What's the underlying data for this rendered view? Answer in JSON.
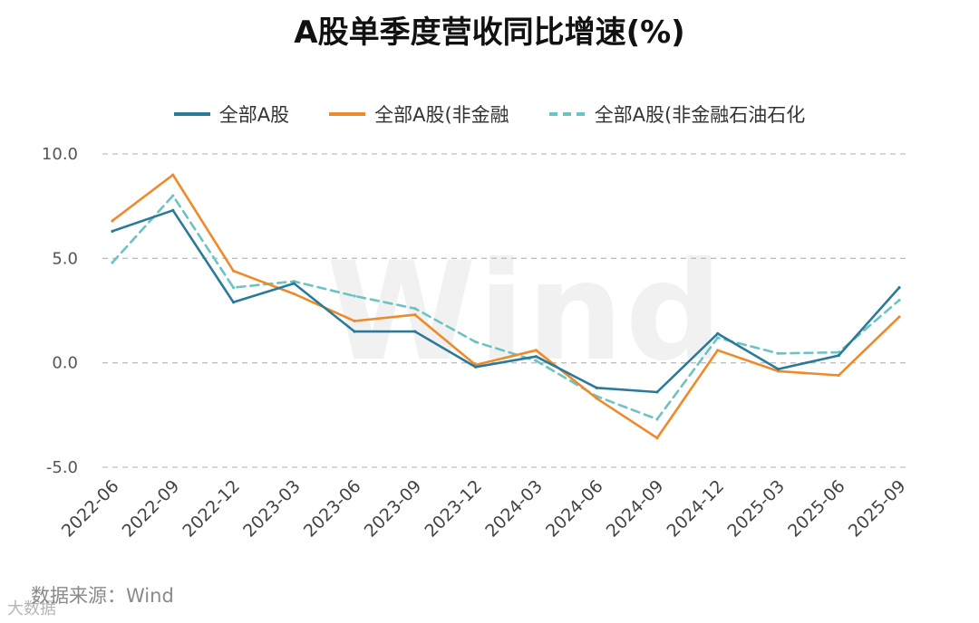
{
  "watermark": "Wind",
  "source_text": "数据来源：Wind",
  "brand_mark": "大数据",
  "colors": {
    "series1": "#2b7a99",
    "series2": "#ee8a2a",
    "series3": "#6cc3c3",
    "negative_tick": "#e0333a",
    "grid": "#bfbfbf"
  },
  "chart_data": {
    "type": "line",
    "title": "A股单季度营收同比增速(%)",
    "xlabel": "",
    "ylabel": "",
    "legend_position": "top",
    "grid": true,
    "ylim": [
      -5,
      10
    ],
    "y_ticks": [
      "10.0",
      "5.0",
      "0.0",
      "-5.0"
    ],
    "categories": [
      "2022-06",
      "2022-09",
      "2022-12",
      "2023-03",
      "2023-06",
      "2023-09",
      "2023-12",
      "2024-03",
      "2024-06",
      "2024-09",
      "2024-12",
      "2025-03",
      "2025-06",
      "2025-09"
    ],
    "series": [
      {
        "name": "全部A股",
        "style": "solid",
        "values": [
          6.3,
          7.3,
          2.9,
          3.8,
          1.5,
          1.5,
          -0.2,
          0.3,
          -1.2,
          -1.4,
          1.4,
          -0.3,
          0.35,
          3.6
        ]
      },
      {
        "name": "全部A股(非金融",
        "style": "solid",
        "values": [
          6.8,
          9.0,
          4.4,
          3.3,
          2.0,
          2.3,
          -0.1,
          0.6,
          -1.7,
          -3.6,
          0.6,
          -0.4,
          -0.6,
          2.2
        ]
      },
      {
        "name": "全部A股(非金融石油石化",
        "style": "dashed",
        "values": [
          4.8,
          8.0,
          3.6,
          3.9,
          3.2,
          2.6,
          1.0,
          0.1,
          -1.6,
          -2.7,
          1.2,
          0.45,
          0.5,
          3.0
        ]
      }
    ]
  }
}
